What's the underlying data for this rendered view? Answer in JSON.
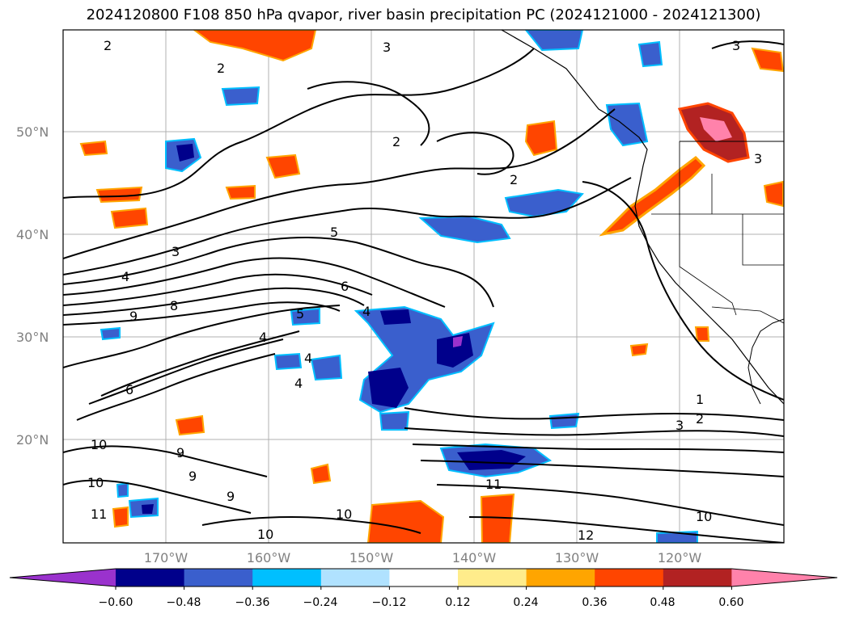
{
  "title": "2024120800 F108 850 hPa qvapor, river basin precipitation PC (2024121000 - 2024121300)",
  "lat_labels": [
    "50°N",
    "40°N",
    "30°N",
    "20°N"
  ],
  "lon_labels": [
    "170°W",
    "160°W",
    "150°W",
    "140°W",
    "130°W",
    "120°W"
  ],
  "colorbar": {
    "ticks": [
      "−0.60",
      "−0.48",
      "−0.36",
      "−0.24",
      "−0.12",
      "0.12",
      "0.24",
      "0.36",
      "0.48",
      "0.60"
    ],
    "colors": [
      "#9a32cd",
      "#00008b",
      "#3a5fcd",
      "#00bfff",
      "#b0e2ff",
      "#ffffff",
      "#ffec8b",
      "#ffa500",
      "#ff4500",
      "#b22222",
      "#ff82ab"
    ]
  },
  "contour_labels": [
    "2",
    "3",
    "2",
    "3",
    "2",
    "2",
    "3",
    "5",
    "4",
    "3",
    "6",
    "9",
    "8",
    "5",
    "4",
    "4",
    "4",
    "4",
    "6",
    "1",
    "2",
    "3",
    "10",
    "9",
    "9",
    "9",
    "10",
    "11",
    "10",
    "10",
    "11",
    "10",
    "12"
  ]
}
